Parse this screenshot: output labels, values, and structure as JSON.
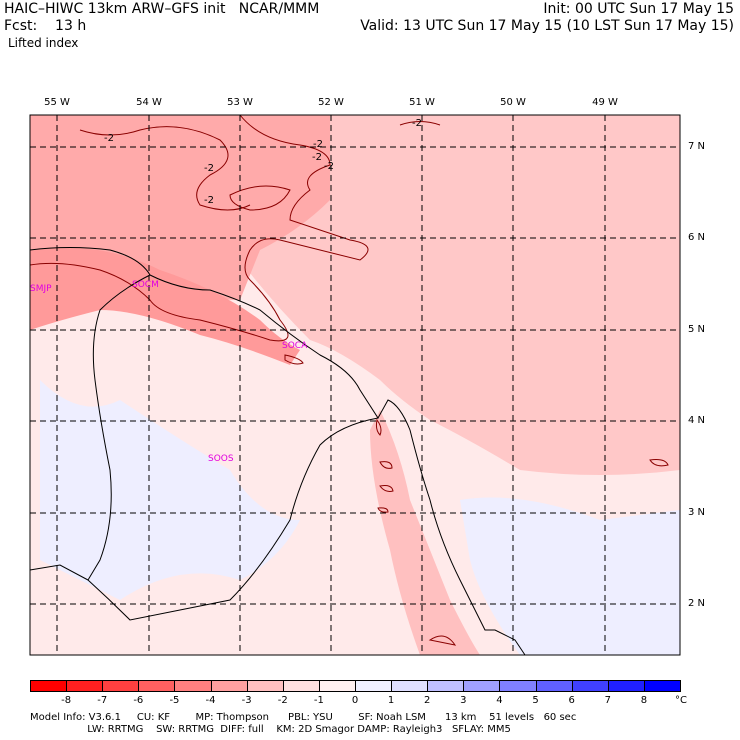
{
  "header": {
    "model": "HAIC–HIWC 13km ARW–GFS init   NCAR/MMM",
    "init": "Init: 00 UTC Sun 17 May 15",
    "fcst": "Fcst:    13 h",
    "valid": "Valid: 13 UTC Sun 17 May 15 (10 LST Sun 17 May 15)",
    "field": "Lifted index"
  },
  "longitudes": [
    "55 W",
    "54 W",
    "53 W",
    "52 W",
    "51 W",
    "50 W",
    "49 W"
  ],
  "latitudes": [
    "7 N",
    "6 N",
    "5 N",
    "4 N",
    "3 N",
    "2 N"
  ],
  "stations": [
    "SMJP",
    "SOCM",
    "SOCA",
    "SOOS"
  ],
  "contour_labels": [
    "-2",
    "-2",
    "-2",
    "-2",
    "-2",
    "-2",
    "-2"
  ],
  "colorbar": {
    "ticks": [
      "-8",
      "-7",
      "-6",
      "-5",
      "-4",
      "-3",
      "-2",
      "-1",
      "0",
      "1",
      "2",
      "3",
      "4",
      "5",
      "6",
      "7",
      "8"
    ],
    "unit": "°C",
    "colors": [
      "#ff0000",
      "#ff2020",
      "#ff4040",
      "#ff6060",
      "#ff8080",
      "#ffa0a0",
      "#ffc0c0",
      "#ffe0e0",
      "#fff0f0",
      "#f0f0ff",
      "#e0e0ff",
      "#c0c0ff",
      "#a0a0ff",
      "#8080ff",
      "#6060ff",
      "#4040ff",
      "#2020ff",
      "#0000ff"
    ]
  },
  "footer": {
    "line1": "Model Info: V3.6.1     CU: KF        MP: Thompson      PBL: YSU        SF: Noah LSM      13 km    51 levels   60 sec",
    "line2": "                  LW: RRTMG    SW: RRTMG  DIFF: full    KM: 2D Smagor DAMP: Rayleigh3   SFLAY: MM5"
  }
}
